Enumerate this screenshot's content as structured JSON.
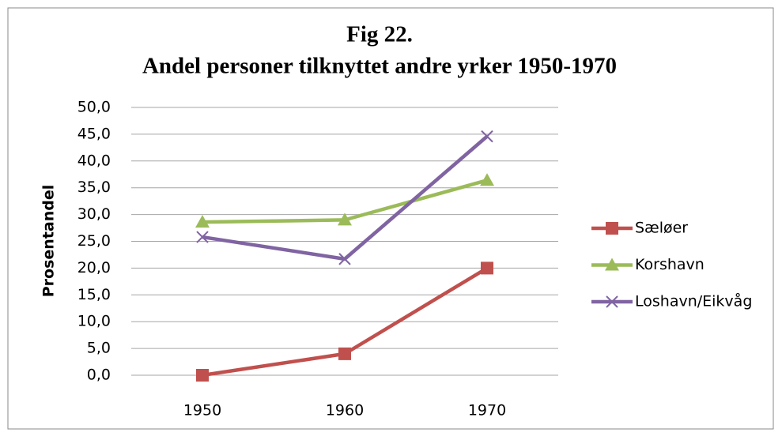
{
  "chart_data": {
    "type": "line",
    "title": "Fig 22.",
    "subtitle": "Andel personer tilknyttet andre yrker 1950-1970",
    "ylabel": "Prosentandel",
    "categories": [
      "1950",
      "1960",
      "1970"
    ],
    "series": [
      {
        "name": "Sæløer",
        "color": "#c0504d",
        "marker": "square",
        "values": [
          0,
          4.0,
          20.0
        ]
      },
      {
        "name": "Korshavn",
        "color": "#9bbb59",
        "marker": "triangle",
        "values": [
          28.6,
          29.0,
          36.4
        ]
      },
      {
        "name": "Loshavn/Eikvåg",
        "color": "#8064a2",
        "marker": "x",
        "values": [
          25.8,
          21.7,
          44.6
        ]
      }
    ],
    "ylim": [
      0,
      50
    ],
    "yticks": [
      {
        "value": 0,
        "label": "0,0"
      },
      {
        "value": 5,
        "label": "5,0"
      },
      {
        "value": 10,
        "label": "10,0"
      },
      {
        "value": 15,
        "label": "15,0"
      },
      {
        "value": 20,
        "label": "20,0"
      },
      {
        "value": 25,
        "label": "25,0"
      },
      {
        "value": 30,
        "label": "30,0"
      },
      {
        "value": 35,
        "label": "35,0"
      },
      {
        "value": 40,
        "label": "40,0"
      },
      {
        "value": 45,
        "label": "45,0"
      },
      {
        "value": 50,
        "label": "50,0"
      }
    ],
    "grid": true,
    "legend": "right"
  }
}
